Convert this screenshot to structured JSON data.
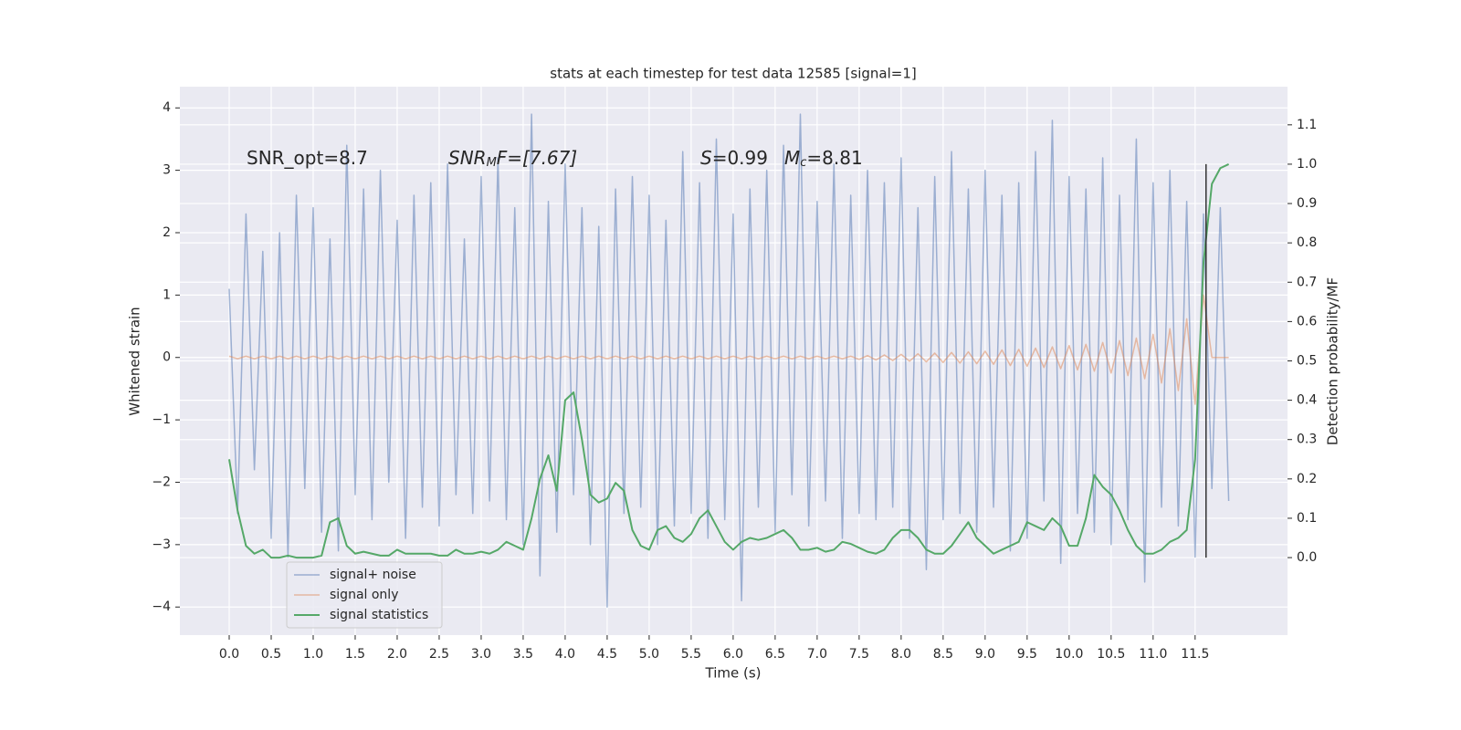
{
  "chart_data": {
    "type": "line",
    "title": "stats at each timestep for test data 12585 [signal=1]",
    "xlabel": "Time (s)",
    "ylabel": "Whitened strain",
    "y2label": "Detection probability/MF",
    "annotations": [
      [
        "SNR_opt=8.7"
      ],
      [
        "SNR",
        "M",
        "F=[7.67]"
      ],
      [
        "S",
        "=0.99"
      ],
      [
        "M",
        "c",
        "=8.81"
      ]
    ],
    "grid": true,
    "legend": "lower left",
    "xlim": [
      -0.587,
      12.6
    ],
    "ylim": [
      -4.45,
      4.34
    ],
    "y2lim": [
      -0.197,
      1.197
    ],
    "xticks": [
      {
        "value": 0,
        "label": "0.0"
      },
      {
        "value": 0.5,
        "label": "0.5"
      },
      {
        "value": 1,
        "label": "1.0"
      },
      {
        "value": 1.5,
        "label": "1.5"
      },
      {
        "value": 2,
        "label": "2.0"
      },
      {
        "value": 2.5,
        "label": "2.5"
      },
      {
        "value": 3,
        "label": "3.0"
      },
      {
        "value": 3.5,
        "label": "3.5"
      },
      {
        "value": 4,
        "label": "4.0"
      },
      {
        "value": 4.5,
        "label": "4.5"
      },
      {
        "value": 5,
        "label": "5.0"
      },
      {
        "value": 5.5,
        "label": "5.5"
      },
      {
        "value": 6,
        "label": "6.0"
      },
      {
        "value": 6.5,
        "label": "6.5"
      },
      {
        "value": 7,
        "label": "7.0"
      },
      {
        "value": 7.5,
        "label": "7.5"
      },
      {
        "value": 8,
        "label": "8.0"
      },
      {
        "value": 8.5,
        "label": "8.5"
      },
      {
        "value": 9,
        "label": "9.0"
      },
      {
        "value": 9.5,
        "label": "9.5"
      },
      {
        "value": 10,
        "label": "10.0"
      },
      {
        "value": 10.5,
        "label": "10.5"
      },
      {
        "value": 11,
        "label": "11.0"
      },
      {
        "value": 11.5,
        "label": "11.5"
      }
    ],
    "yticks": [
      {
        "value": -4,
        "label": "−4"
      },
      {
        "value": -3,
        "label": "−3"
      },
      {
        "value": -2,
        "label": "−2"
      },
      {
        "value": -1,
        "label": "−1"
      },
      0,
      1,
      2,
      3,
      4
    ],
    "y2ticks": [
      {
        "value": 0,
        "label": "0.0"
      },
      {
        "value": 0.1,
        "label": "0.1"
      },
      {
        "value": 0.2,
        "label": "0.2"
      },
      {
        "value": 0.3,
        "label": "0.3"
      },
      {
        "value": 0.4,
        "label": "0.4"
      },
      {
        "value": 0.5,
        "label": "0.5"
      },
      {
        "value": 0.6,
        "label": "0.6"
      },
      {
        "value": 0.7,
        "label": "0.7"
      },
      {
        "value": 0.8,
        "label": "0.8"
      },
      {
        "value": 0.9,
        "label": "0.9"
      },
      {
        "value": 1,
        "label": "1.0"
      },
      {
        "value": 1.1,
        "label": "1.1"
      }
    ],
    "vline": {
      "x": 11.63,
      "y2_range": [
        0,
        1
      ],
      "color": "#333333"
    },
    "x": [
      0,
      0.1,
      0.2,
      0.3,
      0.4,
      0.5,
      0.6,
      0.7,
      0.8,
      0.9,
      1,
      1.1,
      1.2,
      1.3,
      1.4,
      1.5,
      1.6,
      1.7,
      1.8,
      1.9,
      2,
      2.1,
      2.2,
      2.3,
      2.4,
      2.5,
      2.6,
      2.7,
      2.8,
      2.9,
      3,
      3.1,
      3.2,
      3.3,
      3.4,
      3.5,
      3.6,
      3.7,
      3.8,
      3.9,
      4,
      4.1,
      4.2,
      4.3,
      4.4,
      4.5,
      4.6,
      4.7,
      4.8,
      4.9,
      5,
      5.1,
      5.2,
      5.3,
      5.4,
      5.5,
      5.6,
      5.7,
      5.8,
      5.9,
      6,
      6.1,
      6.2,
      6.3,
      6.4,
      6.5,
      6.6,
      6.7,
      6.8,
      6.9,
      7,
      7.1,
      7.2,
      7.3,
      7.4,
      7.5,
      7.6,
      7.7,
      7.8,
      7.9,
      8,
      8.1,
      8.2,
      8.3,
      8.4,
      8.5,
      8.6,
      8.7,
      8.8,
      8.9,
      9,
      9.1,
      9.2,
      9.3,
      9.4,
      9.5,
      9.6,
      9.7,
      9.8,
      9.9,
      10,
      10.1,
      10.2,
      10.3,
      10.4,
      10.5,
      10.6,
      10.7,
      10.8,
      10.9,
      11,
      11.1,
      11.2,
      11.3,
      11.4,
      11.5,
      11.6,
      11.7,
      11.8,
      11.9
    ],
    "series": [
      {
        "name": "signal+ noise",
        "color": "#4c72b0",
        "values": [
          1.1,
          -2.5,
          2.3,
          -1.8,
          1.7,
          -2.9,
          2.0,
          -3.2,
          2.6,
          -2.1,
          2.4,
          -2.8,
          1.9,
          -3.1,
          3.4,
          -2.2,
          2.7,
          -2.6,
          3.0,
          -2.0,
          2.2,
          -2.9,
          2.6,
          -2.4,
          2.8,
          -2.7,
          3.1,
          -2.2,
          1.9,
          -2.5,
          2.9,
          -2.3,
          3.2,
          -2.6,
          2.4,
          -3.0,
          3.9,
          -3.5,
          2.5,
          -2.8,
          3.1,
          -2.2,
          2.4,
          -3.0,
          2.1,
          -4.0,
          2.7,
          -2.5,
          2.9,
          -2.4,
          2.6,
          -3.0,
          2.2,
          -2.7,
          3.3,
          -2.5,
          2.8,
          -2.9,
          3.5,
          -2.6,
          2.3,
          -3.9,
          2.7,
          -2.4,
          3.0,
          -2.8,
          3.4,
          -2.2,
          3.9,
          -2.7,
          2.5,
          -2.3,
          3.1,
          -2.9,
          2.6,
          -2.5,
          3.0,
          -2.6,
          2.8,
          -2.4,
          3.2,
          -2.9,
          2.4,
          -3.4,
          2.9,
          -2.6,
          3.3,
          -2.5,
          2.7,
          -2.8,
          3.0,
          -2.4,
          2.6,
          -3.1,
          2.8,
          -2.9,
          3.3,
          -2.3,
          3.8,
          -3.3,
          2.9,
          -2.5,
          2.7,
          -2.8,
          3.2,
          -3.0,
          2.6,
          -2.6,
          3.5,
          -3.6,
          2.8,
          -2.4,
          3.0,
          -2.7,
          2.5,
          -3.2,
          2.3,
          -2.1,
          2.4,
          -2.3
        ]
      },
      {
        "name": "signal only",
        "color": "#dd8452",
        "values": [
          0.02,
          -0.02,
          0.02,
          -0.02,
          0.02,
          -0.02,
          0.02,
          -0.02,
          0.02,
          -0.02,
          0.02,
          -0.02,
          0.02,
          -0.02,
          0.02,
          -0.02,
          0.02,
          -0.02,
          0.02,
          -0.02,
          0.02,
          -0.02,
          0.02,
          -0.02,
          0.02,
          -0.02,
          0.02,
          -0.02,
          0.02,
          -0.02,
          0.02,
          -0.02,
          0.02,
          -0.02,
          0.02,
          -0.02,
          0.02,
          -0.02,
          0.02,
          -0.02,
          0.02,
          -0.02,
          0.02,
          -0.02,
          0.02,
          -0.02,
          0.02,
          -0.02,
          0.02,
          -0.02,
          0.02,
          -0.02,
          0.02,
          -0.02,
          0.02,
          -0.02,
          0.02,
          -0.02,
          0.02,
          -0.02,
          0.02,
          -0.02,
          0.02,
          -0.02,
          0.02,
          -0.02,
          0.02,
          -0.02,
          0.02,
          -0.02,
          0.02,
          -0.02,
          0.02,
          -0.02,
          0.02,
          -0.03,
          0.03,
          -0.04,
          0.04,
          -0.05,
          0.05,
          -0.06,
          0.06,
          -0.07,
          0.07,
          -0.08,
          0.08,
          -0.09,
          0.09,
          -0.1,
          0.1,
          -0.11,
          0.12,
          -0.13,
          0.13,
          -0.14,
          0.15,
          -0.16,
          0.17,
          -0.18,
          0.19,
          -0.2,
          0.21,
          -0.22,
          0.24,
          -0.25,
          0.27,
          -0.29,
          0.31,
          -0.34,
          0.37,
          -0.41,
          0.46,
          -0.53,
          0.62,
          -0.75,
          1.0,
          0.0,
          0.0,
          0.0
        ]
      },
      {
        "name": "signal statistics",
        "color": "#55a868",
        "axis": "y2",
        "values": [
          0.25,
          0.12,
          0.03,
          0.01,
          0.02,
          0.0,
          0.0,
          0.005,
          0.0,
          0.0,
          0.0,
          0.005,
          0.09,
          0.1,
          0.03,
          0.01,
          0.015,
          0.01,
          0.005,
          0.005,
          0.02,
          0.01,
          0.01,
          0.01,
          0.01,
          0.005,
          0.005,
          0.02,
          0.01,
          0.01,
          0.015,
          0.01,
          0.02,
          0.04,
          0.03,
          0.02,
          0.1,
          0.2,
          0.26,
          0.17,
          0.4,
          0.42,
          0.3,
          0.16,
          0.14,
          0.15,
          0.19,
          0.17,
          0.07,
          0.03,
          0.02,
          0.07,
          0.08,
          0.05,
          0.04,
          0.06,
          0.1,
          0.12,
          0.08,
          0.04,
          0.02,
          0.04,
          0.05,
          0.045,
          0.05,
          0.06,
          0.07,
          0.05,
          0.02,
          0.02,
          0.025,
          0.015,
          0.02,
          0.04,
          0.035,
          0.025,
          0.015,
          0.01,
          0.02,
          0.05,
          0.07,
          0.07,
          0.05,
          0.02,
          0.01,
          0.01,
          0.03,
          0.06,
          0.09,
          0.05,
          0.03,
          0.01,
          0.02,
          0.03,
          0.04,
          0.09,
          0.08,
          0.07,
          0.1,
          0.08,
          0.03,
          0.03,
          0.1,
          0.21,
          0.18,
          0.16,
          0.12,
          0.07,
          0.03,
          0.01,
          0.01,
          0.02,
          0.04,
          0.05,
          0.07,
          0.25,
          0.75,
          0.95,
          0.99,
          1.0
        ]
      }
    ]
  }
}
